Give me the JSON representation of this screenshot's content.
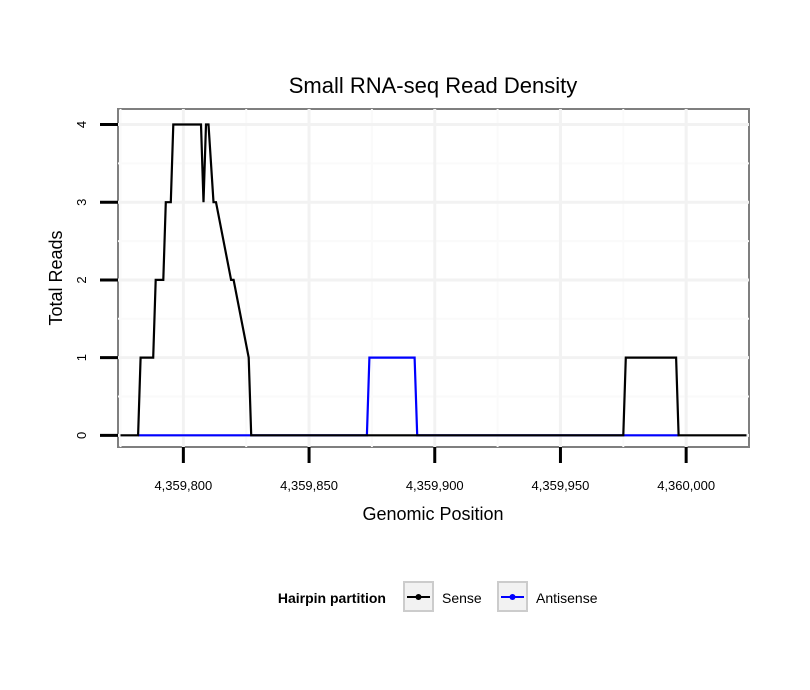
{
  "chart_data": {
    "type": "line",
    "title": "Small RNA-seq Read Density",
    "xlabel": "Genomic Position",
    "ylabel": "Total Reads",
    "xlim": [
      4359774,
      4360025
    ],
    "ylim": [
      -0.15,
      4.2
    ],
    "xticks": [
      4359800,
      4359850,
      4359900,
      4359950,
      4360000
    ],
    "xtick_labels": [
      "4,359,800",
      "4,359,850",
      "4,359,900",
      "4,359,950",
      "4,360,000"
    ],
    "yticks": [
      0,
      1,
      2,
      3,
      4
    ],
    "ytick_labels": [
      "0",
      "1",
      "2",
      "3",
      "4"
    ],
    "grid": true,
    "legend": {
      "title": "Hairpin partition",
      "position": "bottom"
    },
    "series": [
      {
        "name": "Sense",
        "color": "#000000",
        "x": [
          4359775,
          4359782,
          4359783,
          4359788,
          4359789,
          4359792,
          4359793,
          4359795,
          4359796,
          4359800,
          4359801,
          4359807,
          4359808,
          4359809,
          4359810,
          4359812,
          4359813,
          4359819,
          4359820,
          4359826,
          4359827,
          4359975,
          4359976,
          4359996,
          4359997,
          4360024
        ],
        "values": [
          0,
          0,
          1,
          1,
          2,
          2,
          3,
          3,
          4,
          4,
          4,
          4,
          3,
          4,
          4,
          3,
          3,
          2,
          2,
          1,
          0,
          0,
          1,
          1,
          0,
          0
        ]
      },
      {
        "name": "Antisense",
        "color": "#0000ff",
        "x": [
          4359782,
          4359873,
          4359874,
          4359892,
          4359893,
          4359975,
          4359976,
          4359996,
          4359997
        ],
        "values": [
          0,
          0,
          1,
          1,
          0,
          0,
          0,
          0,
          0
        ]
      }
    ]
  }
}
